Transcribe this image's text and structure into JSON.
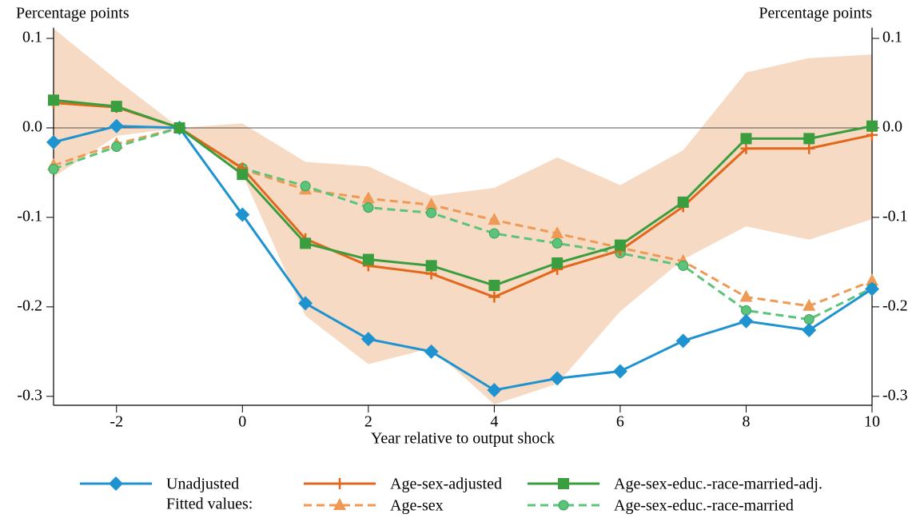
{
  "chart_data": {
    "type": "line",
    "ylabel": "Percentage points",
    "y2label": "Percentage points",
    "xlabel": "Year relative to output shock",
    "x": [
      -3,
      -2,
      -1,
      0,
      1,
      2,
      3,
      4,
      5,
      6,
      7,
      8,
      9,
      10
    ],
    "xlim": [
      -3,
      10
    ],
    "xticks": [
      -2,
      0,
      2,
      4,
      6,
      8,
      10
    ],
    "ylim": [
      -0.31,
      0.112
    ],
    "yticks": [
      -0.3,
      -0.2,
      -0.1,
      {
        "value": 0,
        "label": "0.0"
      },
      0.1
    ],
    "y2lim": [
      -0.31,
      0.112
    ],
    "y2ticks": [
      -0.3,
      -0.2,
      -0.1,
      {
        "value": 0,
        "label": "0.0"
      },
      0.1
    ],
    "zero_line": true,
    "band": {
      "color": "#f6d4b8",
      "upper": [
        0.111,
        0.054,
        0,
        0.005,
        -0.038,
        -0.043,
        -0.076,
        -0.067,
        -0.033,
        -0.064,
        -0.025,
        0.062,
        0.078,
        0.082
      ],
      "lower": [
        -0.055,
        -0.009,
        0,
        -0.052,
        -0.21,
        -0.264,
        -0.246,
        -0.309,
        -0.286,
        -0.205,
        -0.147,
        -0.11,
        -0.125,
        -0.102
      ]
    },
    "legend_note": "Fitted values:",
    "series": [
      {
        "name": "Unadjusted",
        "color": "#1e93d0",
        "marker": "diamond",
        "dashed": false,
        "values": [
          -0.016,
          0.002,
          0,
          -0.097,
          -0.196,
          -0.236,
          -0.25,
          -0.293,
          -0.28,
          -0.272,
          -0.238,
          -0.216,
          -0.226,
          -0.18
        ]
      },
      {
        "name": "Age-sex-adjusted",
        "color": "#e2671a",
        "marker": "plus",
        "dashed": false,
        "values": [
          0.028,
          0.023,
          0,
          -0.045,
          -0.124,
          -0.154,
          -0.163,
          -0.189,
          -0.158,
          -0.137,
          -0.088,
          -0.023,
          -0.023,
          -0.008
        ]
      },
      {
        "name": "Age-sex-educ.-race-married-adj.",
        "color": "#3a9e3f",
        "marker": "square",
        "dashed": false,
        "values": [
          0.031,
          0.024,
          0,
          -0.052,
          -0.129,
          -0.147,
          -0.154,
          -0.176,
          -0.151,
          -0.131,
          -0.083,
          -0.012,
          -0.012,
          0.002
        ]
      },
      {
        "name": "Age-sex",
        "color": "#ee9a55",
        "marker": "triangle",
        "dashed": true,
        "values": [
          -0.042,
          -0.018,
          0,
          -0.046,
          -0.069,
          -0.079,
          -0.086,
          -0.103,
          -0.118,
          -0.134,
          -0.149,
          -0.189,
          -0.199,
          -0.171
        ]
      },
      {
        "name": "Age-sex-educ.-race-married",
        "color": "#5cc47a",
        "marker": "circle",
        "dashed": true,
        "values": [
          -0.046,
          -0.021,
          0,
          -0.045,
          -0.065,
          -0.089,
          -0.095,
          -0.118,
          -0.129,
          -0.14,
          -0.154,
          -0.204,
          -0.214,
          -0.179
        ]
      }
    ]
  }
}
